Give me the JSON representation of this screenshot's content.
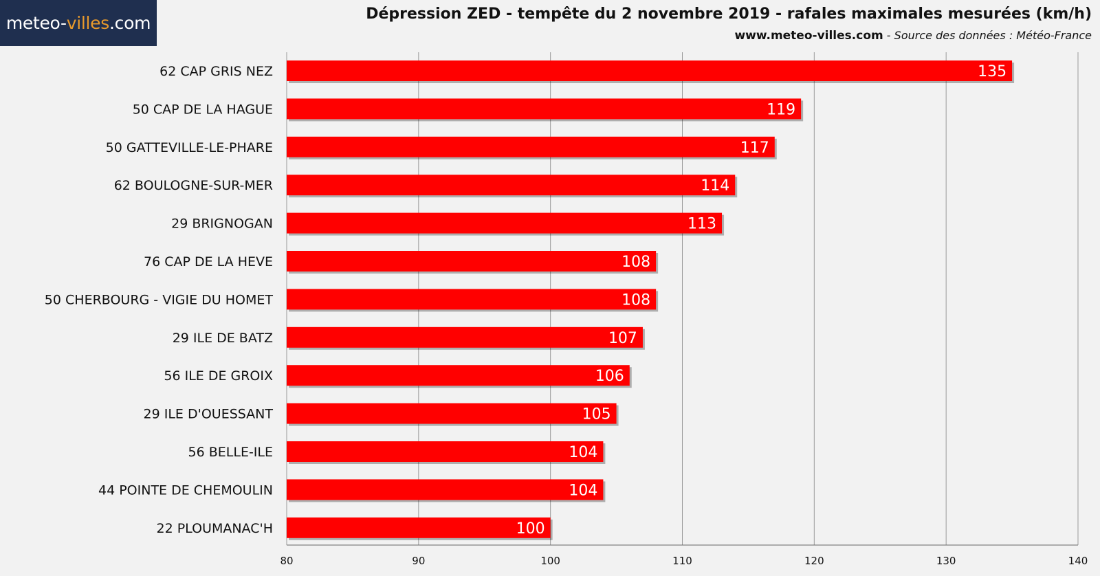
{
  "logo": {
    "prefix": "meteo-",
    "accent": "villes",
    "suffix": ".com"
  },
  "header": {
    "title": "Dépression ZED - tempête du 2 novembre 2019 - rafales maximales mesurées (km/h)",
    "site": "www.meteo-villes.com",
    "separator": " - ",
    "source": "Source des données : Météo-France"
  },
  "colors": {
    "bar": "#ff0000",
    "logo_bg": "#1f2f4f",
    "logo_accent": "#e89a2c",
    "grid": "#999999"
  },
  "chart_data": {
    "type": "bar",
    "orientation": "horizontal",
    "categories": [
      "62 CAP GRIS NEZ",
      "50 CAP DE LA HAGUE",
      "50 GATTEVILLE-LE-PHARE",
      "62 BOULOGNE-SUR-MER",
      "29 BRIGNOGAN",
      "76 CAP DE LA HEVE",
      "50 CHERBOURG - VIGIE DU HOMET",
      "29 ILE DE BATZ",
      "56 ILE DE GROIX",
      "29 ILE D'OUESSANT",
      "56 BELLE-ILE",
      "44 POINTE DE CHEMOULIN",
      "22 PLOUMANAC'H"
    ],
    "values": [
      135,
      119,
      117,
      114,
      113,
      108,
      108,
      107,
      106,
      105,
      104,
      104,
      100
    ],
    "xlim": [
      80,
      140
    ],
    "xticks": [
      80,
      90,
      100,
      110,
      120,
      130,
      140
    ],
    "grid": true,
    "data_labels": true
  }
}
